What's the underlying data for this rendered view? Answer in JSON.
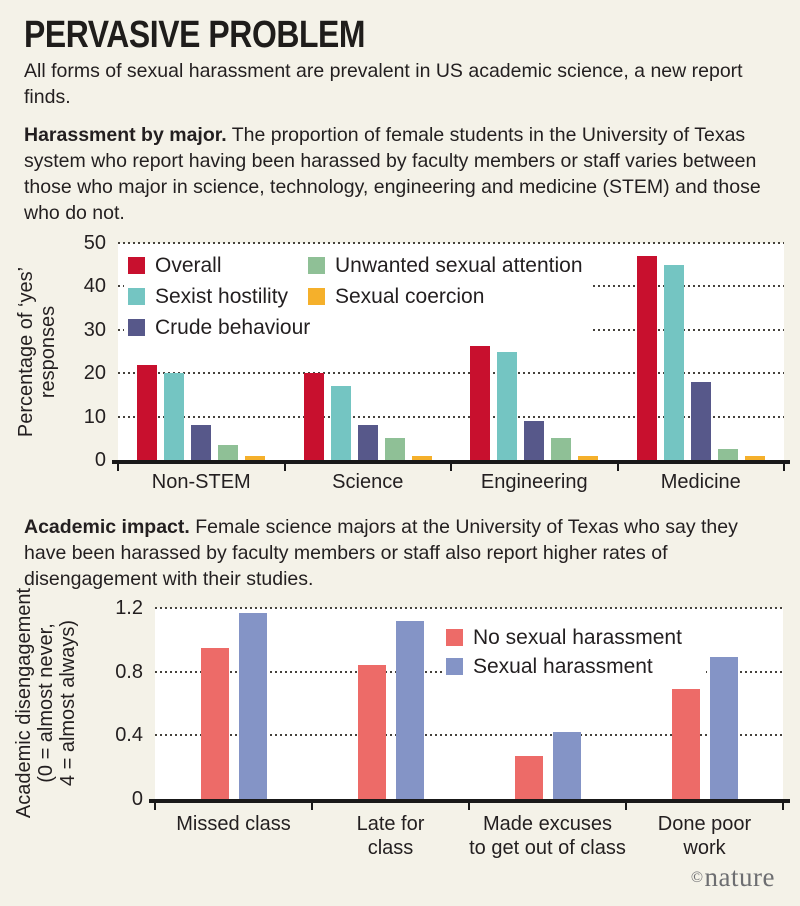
{
  "page": {
    "title": "PERVASIVE PROBLEM",
    "intro": "All forms of sexual harassment are prevalent in US academic science, a new report finds.",
    "background": "#F4F2E8",
    "text_color": "#231F20",
    "footer": {
      "copyright": "©",
      "logo": "nature"
    }
  },
  "sections": [
    {
      "lead": "Harassment by major.",
      "body": " The proportion of female students in the University of Texas system who report having been harassed by faculty members or staff varies between those who major in science, technology, engineering and medicine (STEM) and those who do not."
    },
    {
      "lead": "Academic impact.",
      "body": " Female science majors at the University of Texas who say they have been harassed by faculty members or staff also report higher rates of disengagement with their studies."
    }
  ],
  "chart_data": [
    {
      "type": "bar",
      "title": "Harassment by major",
      "ylabel": "Percentage of ‘yes’ responses",
      "ylabel_lines": [
        "Percentage of ‘yes’",
        "responses"
      ],
      "ylim": [
        0,
        50
      ],
      "yticks": [
        "0",
        "10",
        "20",
        "30",
        "40",
        "50"
      ],
      "grid": "horizontal-dotted",
      "legend_position": "top-left",
      "legend_columns": [
        [
          0,
          1,
          2
        ],
        [
          3,
          4
        ]
      ],
      "categories": [
        [
          "Non-STEM"
        ],
        [
          "Science"
        ],
        [
          "Engineering"
        ],
        [
          "Medicine"
        ]
      ],
      "series": [
        {
          "name": "Overall",
          "color": "#C8102E",
          "values": [
            22,
            20,
            27,
            47
          ]
        },
        {
          "name": "Sexist hostility",
          "color": "#74C5C2",
          "values": [
            20,
            17,
            25,
            45
          ]
        },
        {
          "name": "Crude behaviour",
          "color": "#57588A",
          "values": [
            8,
            8,
            9,
            18
          ]
        },
        {
          "name": "Unwanted sexual attention",
          "color": "#8FC096",
          "values": [
            3.5,
            5,
            5,
            2.5
          ]
        },
        {
          "name": "Sexual coercion",
          "color": "#F5B02B",
          "values": [
            1,
            1,
            1,
            1
          ]
        }
      ]
    },
    {
      "type": "bar",
      "title": "Academic impact",
      "ylabel": "Academic disengagement (0 = almost never, 4 = almost always)",
      "ylabel_lines": [
        "Academic disengagement",
        "(0 = almost never,",
        "4 = almost always)"
      ],
      "ylim": [
        0,
        1.2
      ],
      "yticks": [
        "0",
        "0.4",
        "0.8",
        "1.2"
      ],
      "grid": "horizontal-dotted",
      "legend_position": "top-right",
      "legend_columns": [
        [
          0,
          1
        ]
      ],
      "categories": [
        [
          "Missed class"
        ],
        [
          "Late for",
          "class"
        ],
        [
          "Made excuses",
          "to get out of class"
        ],
        [
          "Done poor",
          "work"
        ]
      ],
      "series": [
        {
          "name": "No sexual harassment",
          "color": "#ED6B68",
          "values": [
            0.95,
            0.84,
            0.27,
            0.69
          ]
        },
        {
          "name": "Sexual harassment",
          "color": "#8494C6",
          "values": [
            1.17,
            1.12,
            0.42,
            0.89
          ]
        }
      ]
    }
  ]
}
